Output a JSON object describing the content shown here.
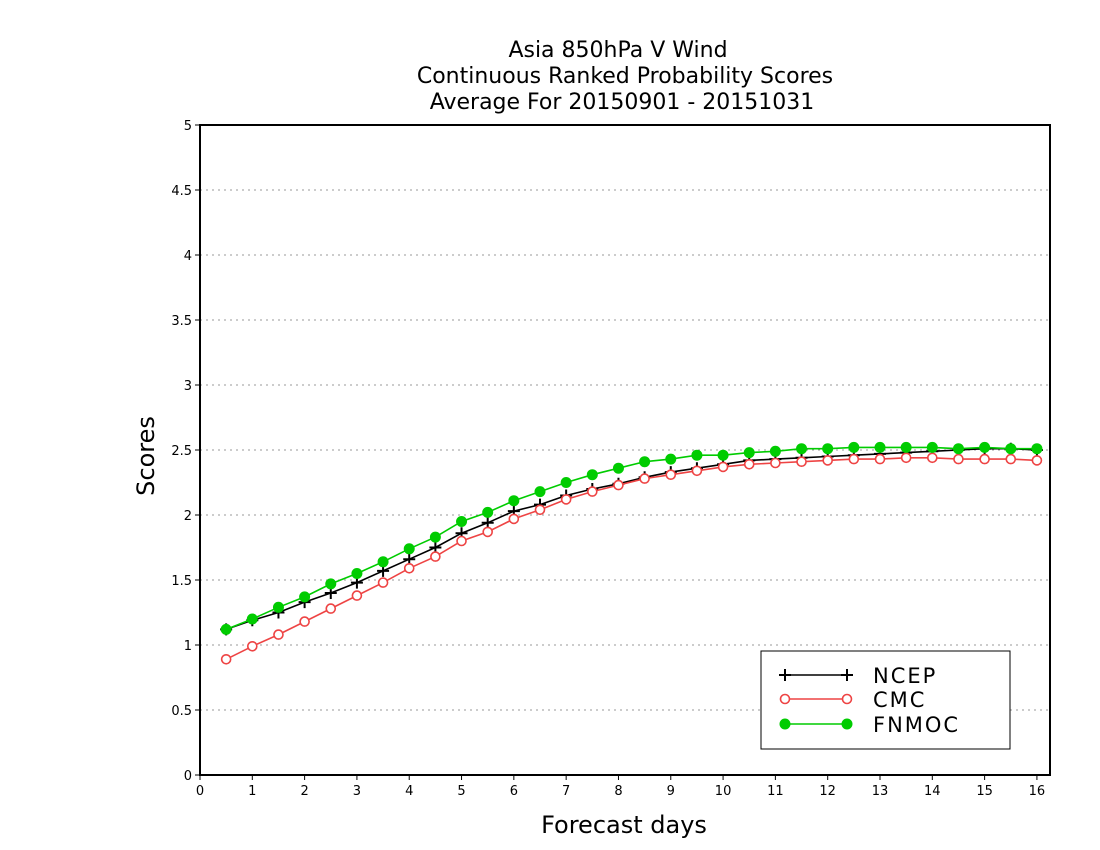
{
  "chart_data": {
    "type": "line",
    "title": [
      "Asia 850hPa V Wind",
      "Continuous Ranked Probability Scores",
      "Average For 20150901 - 20151031"
    ],
    "xlabel": "Forecast days",
    "ylabel": "Scores",
    "xlim": [
      0,
      16.25
    ],
    "ylim": [
      0,
      5
    ],
    "xticks": [
      0,
      1,
      2,
      3,
      4,
      5,
      6,
      7,
      8,
      9,
      10,
      11,
      12,
      13,
      14,
      15,
      16
    ],
    "xtick_labels": [
      "0",
      "1",
      "2",
      "3",
      "4",
      "5",
      "6",
      "7",
      "8",
      "9",
      "10",
      "11",
      "12",
      "13",
      "14",
      "15",
      "16"
    ],
    "yticks": [
      0,
      0.5,
      1,
      1.5,
      2,
      2.5,
      3,
      3.5,
      4,
      4.5,
      5
    ],
    "ytick_labels": [
      "0",
      "0.5",
      "1",
      "1.5",
      "2",
      "2.5",
      "3",
      "3.5",
      "4",
      "4.5",
      "5"
    ],
    "grid": "horizontal dotted",
    "legend_position": "bottom-right",
    "x": [
      0.5,
      1,
      1.5,
      2,
      2.5,
      3,
      3.5,
      4,
      4.5,
      5,
      5.5,
      6,
      6.5,
      7,
      7.5,
      8,
      8.5,
      9,
      9.5,
      10,
      10.5,
      11,
      11.5,
      12,
      12.5,
      13,
      13.5,
      14,
      14.5,
      15,
      15.5,
      16
    ],
    "series": [
      {
        "name": "NCEP",
        "color": "#000000",
        "marker": "plus",
        "values": [
          1.12,
          1.19,
          1.25,
          1.33,
          1.4,
          1.48,
          1.57,
          1.66,
          1.75,
          1.86,
          1.94,
          2.03,
          2.08,
          2.15,
          2.2,
          2.24,
          2.29,
          2.33,
          2.36,
          2.39,
          2.42,
          2.43,
          2.44,
          2.45,
          2.46,
          2.47,
          2.48,
          2.49,
          2.5,
          2.51,
          2.51,
          2.5
        ]
      },
      {
        "name": "CMC",
        "color": "#ee4444",
        "marker": "hollow-circle",
        "values": [
          0.89,
          0.99,
          1.08,
          1.18,
          1.28,
          1.38,
          1.48,
          1.59,
          1.68,
          1.8,
          1.87,
          1.97,
          2.04,
          2.12,
          2.18,
          2.23,
          2.28,
          2.31,
          2.34,
          2.37,
          2.39,
          2.4,
          2.41,
          2.42,
          2.43,
          2.43,
          2.44,
          2.44,
          2.43,
          2.43,
          2.43,
          2.42
        ]
      },
      {
        "name": "FNMOC",
        "color": "#00cc00",
        "marker": "filled-circle",
        "values": [
          1.12,
          1.2,
          1.29,
          1.37,
          1.47,
          1.55,
          1.64,
          1.74,
          1.83,
          1.95,
          2.02,
          2.11,
          2.18,
          2.25,
          2.31,
          2.36,
          2.41,
          2.43,
          2.46,
          2.46,
          2.48,
          2.49,
          2.51,
          2.51,
          2.52,
          2.52,
          2.52,
          2.52,
          2.51,
          2.52,
          2.51,
          2.51
        ]
      }
    ]
  }
}
